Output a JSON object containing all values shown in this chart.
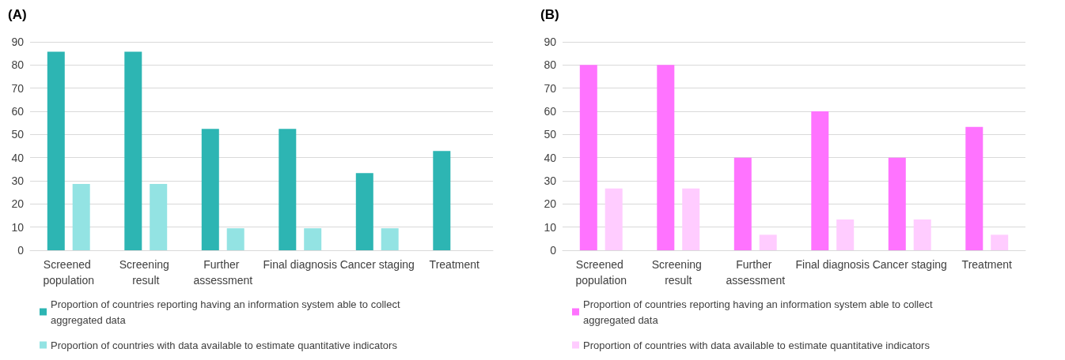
{
  "chart_data": [
    {
      "type": "bar",
      "title": "(A)",
      "categories": [
        "Screened population",
        "Screening result",
        "Further assessment",
        "Final diagnosis",
        "Cancer staging",
        "Treatment"
      ],
      "series": [
        {
          "name": "Proportion of countries reporting having an information system able to collect aggregated data",
          "color": "#2db5b3",
          "values": [
            85.7,
            85.7,
            52.4,
            52.4,
            33.3,
            42.9
          ]
        },
        {
          "name": "Proportion of countries with data available to estimate quantitative indicators",
          "color": "#93e3e3",
          "values": [
            28.6,
            28.6,
            9.5,
            9.5,
            9.5,
            0
          ]
        }
      ],
      "ylim": [
        0,
        90
      ],
      "yticks": [
        0,
        10,
        20,
        30,
        40,
        50,
        60,
        70,
        80,
        90
      ],
      "grid": "y",
      "legend": "bottom"
    },
    {
      "type": "bar",
      "title": "(B)",
      "categories": [
        "Screened population",
        "Screening result",
        "Further assessment",
        "Final diagnosis",
        "Cancer staging",
        "Treatment"
      ],
      "series": [
        {
          "name": "Proportion of countries reporting having an information system able to collect aggregated data",
          "color": "#ff73ff",
          "values": [
            80,
            80,
            40,
            60,
            40,
            53.3
          ]
        },
        {
          "name": "Proportion of countries with data available to estimate quantitative indicators",
          "color": "#ffccff",
          "values": [
            26.7,
            26.7,
            6.7,
            13.3,
            13.3,
            6.7
          ]
        }
      ],
      "ylim": [
        0,
        90
      ],
      "yticks": [
        0,
        10,
        20,
        30,
        40,
        50,
        60,
        70,
        80,
        90
      ],
      "grid": "y",
      "legend": "bottom"
    }
  ]
}
